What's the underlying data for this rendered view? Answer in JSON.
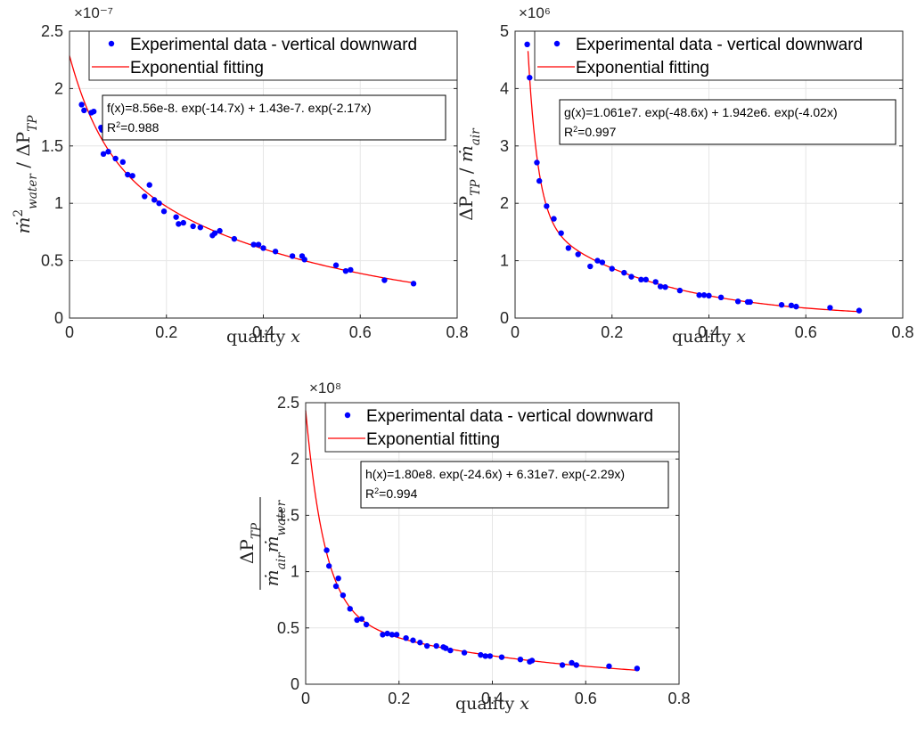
{
  "legend": {
    "data_label": "Experimental data - vertical downward",
    "fit_label": "Exponential fitting"
  },
  "colors": {
    "data": "#0000ff",
    "fit": "#ff0000",
    "grid": "#e6e6e6",
    "axis": "#262626"
  },
  "chart_data": [
    {
      "type": "scatter",
      "title": "",
      "xlabel": "quality x",
      "ylabel": "m-dot^2_water / ΔP_TP",
      "exponent_label": "×10⁻⁷",
      "xlim": [
        0,
        0.8
      ],
      "ylim": [
        0,
        2.5
      ],
      "x_ticks": [
        "0",
        "0.2",
        "0.4",
        "0.6",
        "0.8"
      ],
      "y_ticks": [
        "0",
        "0.5",
        "1",
        "1.5",
        "2",
        "2.5"
      ],
      "grid": true,
      "legend_position": "top-right",
      "annotation": {
        "equation": "f(x)=8.56e-8. exp(-14.7x) + 1.43e-7. exp(-2.17x)",
        "r2": "=0.988"
      },
      "fit": {
        "a": 0.856,
        "b": -14.7,
        "c": 1.43,
        "d": -2.17
      },
      "series": [
        {
          "name": "Experimental data - vertical downward",
          "x": [
            0.025,
            0.03,
            0.045,
            0.05,
            0.065,
            0.067,
            0.07,
            0.08,
            0.095,
            0.11,
            0.12,
            0.13,
            0.155,
            0.165,
            0.175,
            0.185,
            0.195,
            0.22,
            0.225,
            0.235,
            0.255,
            0.27,
            0.295,
            0.3,
            0.31,
            0.34,
            0.38,
            0.39,
            0.4,
            0.425,
            0.46,
            0.48,
            0.485,
            0.55,
            0.57,
            0.58,
            0.65,
            0.71
          ],
          "y": [
            1.86,
            1.81,
            1.79,
            1.8,
            1.66,
            1.64,
            1.43,
            1.45,
            1.39,
            1.36,
            1.25,
            1.24,
            1.06,
            1.16,
            1.03,
            1.0,
            0.93,
            0.88,
            0.82,
            0.83,
            0.8,
            0.79,
            0.72,
            0.74,
            0.76,
            0.69,
            0.64,
            0.64,
            0.61,
            0.58,
            0.54,
            0.54,
            0.51,
            0.46,
            0.41,
            0.42,
            0.33,
            0.3
          ]
        }
      ]
    },
    {
      "type": "scatter",
      "title": "",
      "xlabel": "quality x",
      "ylabel": "ΔP_TP / m-dot_air",
      "exponent_label": "×10⁶",
      "xlim": [
        0,
        0.8
      ],
      "ylim": [
        0,
        5
      ],
      "x_ticks": [
        "0",
        "0.2",
        "0.4",
        "0.6",
        "0.8"
      ],
      "y_ticks": [
        "0",
        "1",
        "2",
        "3",
        "4",
        "5"
      ],
      "grid": true,
      "legend_position": "top-right",
      "annotation": {
        "equation": "g(x)=1.061e7. exp(-48.6x) + 1.942e6. exp(-4.02x)",
        "r2": "=0.997"
      },
      "fit": {
        "a": 10.61,
        "b": -48.6,
        "c": 1.942,
        "d": -4.02
      },
      "series": [
        {
          "name": "Experimental data - vertical downward",
          "x": [
            0.025,
            0.03,
            0.045,
            0.05,
            0.065,
            0.08,
            0.095,
            0.11,
            0.13,
            0.155,
            0.17,
            0.18,
            0.2,
            0.225,
            0.24,
            0.26,
            0.27,
            0.29,
            0.3,
            0.31,
            0.34,
            0.38,
            0.39,
            0.4,
            0.425,
            0.46,
            0.48,
            0.485,
            0.55,
            0.57,
            0.58,
            0.65,
            0.71
          ],
          "y": [
            4.77,
            4.19,
            2.71,
            2.39,
            1.95,
            1.73,
            1.48,
            1.22,
            1.11,
            0.9,
            1.0,
            0.97,
            0.86,
            0.79,
            0.72,
            0.67,
            0.67,
            0.63,
            0.55,
            0.54,
            0.48,
            0.4,
            0.4,
            0.39,
            0.36,
            0.29,
            0.28,
            0.28,
            0.23,
            0.22,
            0.2,
            0.18,
            0.13
          ]
        }
      ]
    },
    {
      "type": "scatter",
      "title": "",
      "xlabel": "quality x",
      "ylabel": "ΔP_TP / (m-dot_air m-dot_water)",
      "exponent_label": "×10⁸",
      "xlim": [
        0,
        0.8
      ],
      "ylim": [
        0,
        2.5
      ],
      "x_ticks": [
        "0",
        "0.2",
        "0.4",
        "0.6",
        "0.8"
      ],
      "y_ticks": [
        "0",
        "0.5",
        "1",
        "1.5",
        "2",
        "2.5"
      ],
      "grid": true,
      "legend_position": "top-right",
      "annotation": {
        "equation": "h(x)=1.80e8. exp(-24.6x) + 6.31e7. exp(-2.29x)",
        "r2": "=0.994"
      },
      "fit": {
        "a": 1.8,
        "b": -24.6,
        "c": 0.631,
        "d": -2.29
      },
      "series": [
        {
          "name": "Experimental data - vertical downward",
          "x": [
            0.045,
            0.05,
            0.065,
            0.07,
            0.08,
            0.095,
            0.11,
            0.12,
            0.13,
            0.165,
            0.175,
            0.185,
            0.195,
            0.215,
            0.23,
            0.245,
            0.26,
            0.28,
            0.295,
            0.3,
            0.31,
            0.34,
            0.375,
            0.385,
            0.395,
            0.42,
            0.46,
            0.48,
            0.485,
            0.55,
            0.57,
            0.58,
            0.65,
            0.71
          ],
          "y": [
            1.19,
            1.05,
            0.87,
            0.94,
            0.79,
            0.67,
            0.57,
            0.58,
            0.53,
            0.44,
            0.45,
            0.44,
            0.44,
            0.41,
            0.39,
            0.37,
            0.34,
            0.34,
            0.33,
            0.32,
            0.3,
            0.28,
            0.26,
            0.25,
            0.25,
            0.24,
            0.22,
            0.2,
            0.21,
            0.17,
            0.19,
            0.17,
            0.16,
            0.14
          ]
        }
      ]
    }
  ]
}
